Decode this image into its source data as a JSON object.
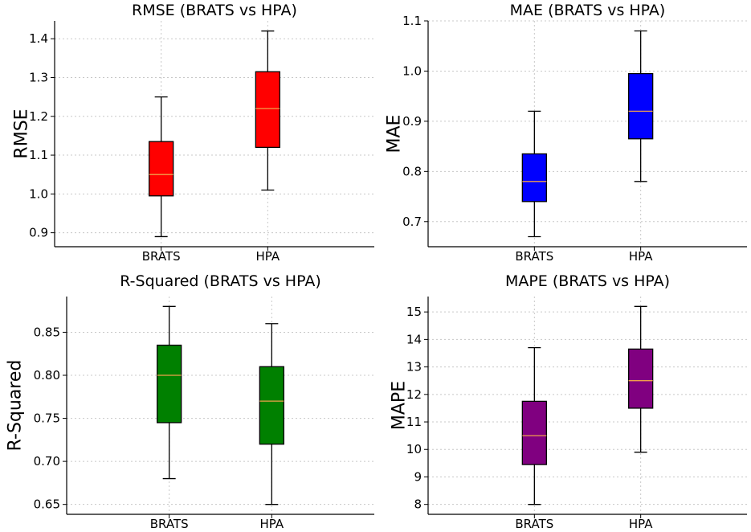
{
  "chart_data": [
    {
      "type": "box",
      "title": "RMSE (BRATS vs HPA)",
      "ylabel": "RMSE",
      "xlabel": "",
      "color": "#ff0000",
      "categories": [
        "BRATS",
        "HPA"
      ],
      "boxes": [
        {
          "name": "BRATS",
          "whislo": 0.89,
          "q1": 0.995,
          "med": 1.05,
          "q3": 1.135,
          "whishi": 1.25
        },
        {
          "name": "HPA",
          "whislo": 1.01,
          "q1": 1.12,
          "med": 1.22,
          "q3": 1.315,
          "whishi": 1.42
        }
      ],
      "ylim": [
        0.864,
        1.446
      ],
      "yticks": [
        0.9,
        1.0,
        1.1,
        1.2,
        1.3,
        1.4
      ],
      "ytick_labels": [
        "0.9",
        "1.0",
        "1.1",
        "1.2",
        "1.3",
        "1.4"
      ],
      "grid": true
    },
    {
      "type": "box",
      "title": "MAE (BRATS vs HPA)",
      "ylabel": "MAE",
      "xlabel": "",
      "color": "#0000ff",
      "categories": [
        "BRATS",
        "HPA"
      ],
      "boxes": [
        {
          "name": "BRATS",
          "whislo": 0.67,
          "q1": 0.74,
          "med": 0.78,
          "q3": 0.835,
          "whishi": 0.92
        },
        {
          "name": "HPA",
          "whislo": 0.78,
          "q1": 0.865,
          "med": 0.92,
          "q3": 0.995,
          "whishi": 1.08
        }
      ],
      "ylim": [
        0.65,
        1.1
      ],
      "yticks": [
        0.7,
        0.8,
        0.9,
        1.0,
        1.1
      ],
      "ytick_labels": [
        "0.7",
        "0.8",
        "0.9",
        "1.0",
        "1.1"
      ],
      "grid": true
    },
    {
      "type": "box",
      "title": "R-Squared (BRATS vs HPA)",
      "ylabel": "R-Squared",
      "xlabel": "",
      "color": "#008000",
      "categories": [
        "BRATS",
        "HPA"
      ],
      "boxes": [
        {
          "name": "BRATS",
          "whislo": 0.68,
          "q1": 0.745,
          "med": 0.8,
          "q3": 0.835,
          "whishi": 0.88
        },
        {
          "name": "HPA",
          "whislo": 0.65,
          "q1": 0.72,
          "med": 0.77,
          "q3": 0.81,
          "whishi": 0.86
        }
      ],
      "ylim": [
        0.6385,
        0.8915
      ],
      "yticks": [
        0.65,
        0.7,
        0.75,
        0.8,
        0.85
      ],
      "ytick_labels": [
        "0.65",
        "0.70",
        "0.75",
        "0.80",
        "0.85"
      ],
      "grid": true
    },
    {
      "type": "box",
      "title": "MAPE (BRATS vs HPA)",
      "ylabel": "MAPE",
      "xlabel": "",
      "color": "#800080",
      "categories": [
        "BRATS",
        "HPA"
      ],
      "boxes": [
        {
          "name": "BRATS",
          "whislo": 8.0,
          "q1": 9.45,
          "med": 10.5,
          "q3": 11.75,
          "whishi": 13.7
        },
        {
          "name": "HPA",
          "whislo": 9.9,
          "q1": 11.5,
          "med": 12.5,
          "q3": 13.65,
          "whishi": 15.2
        }
      ],
      "ylim": [
        7.64,
        15.56
      ],
      "yticks": [
        8,
        9,
        10,
        11,
        12,
        13,
        14,
        15
      ],
      "ytick_labels": [
        "8",
        "9",
        "10",
        "11",
        "12",
        "13",
        "14",
        "15"
      ],
      "grid": true
    }
  ]
}
